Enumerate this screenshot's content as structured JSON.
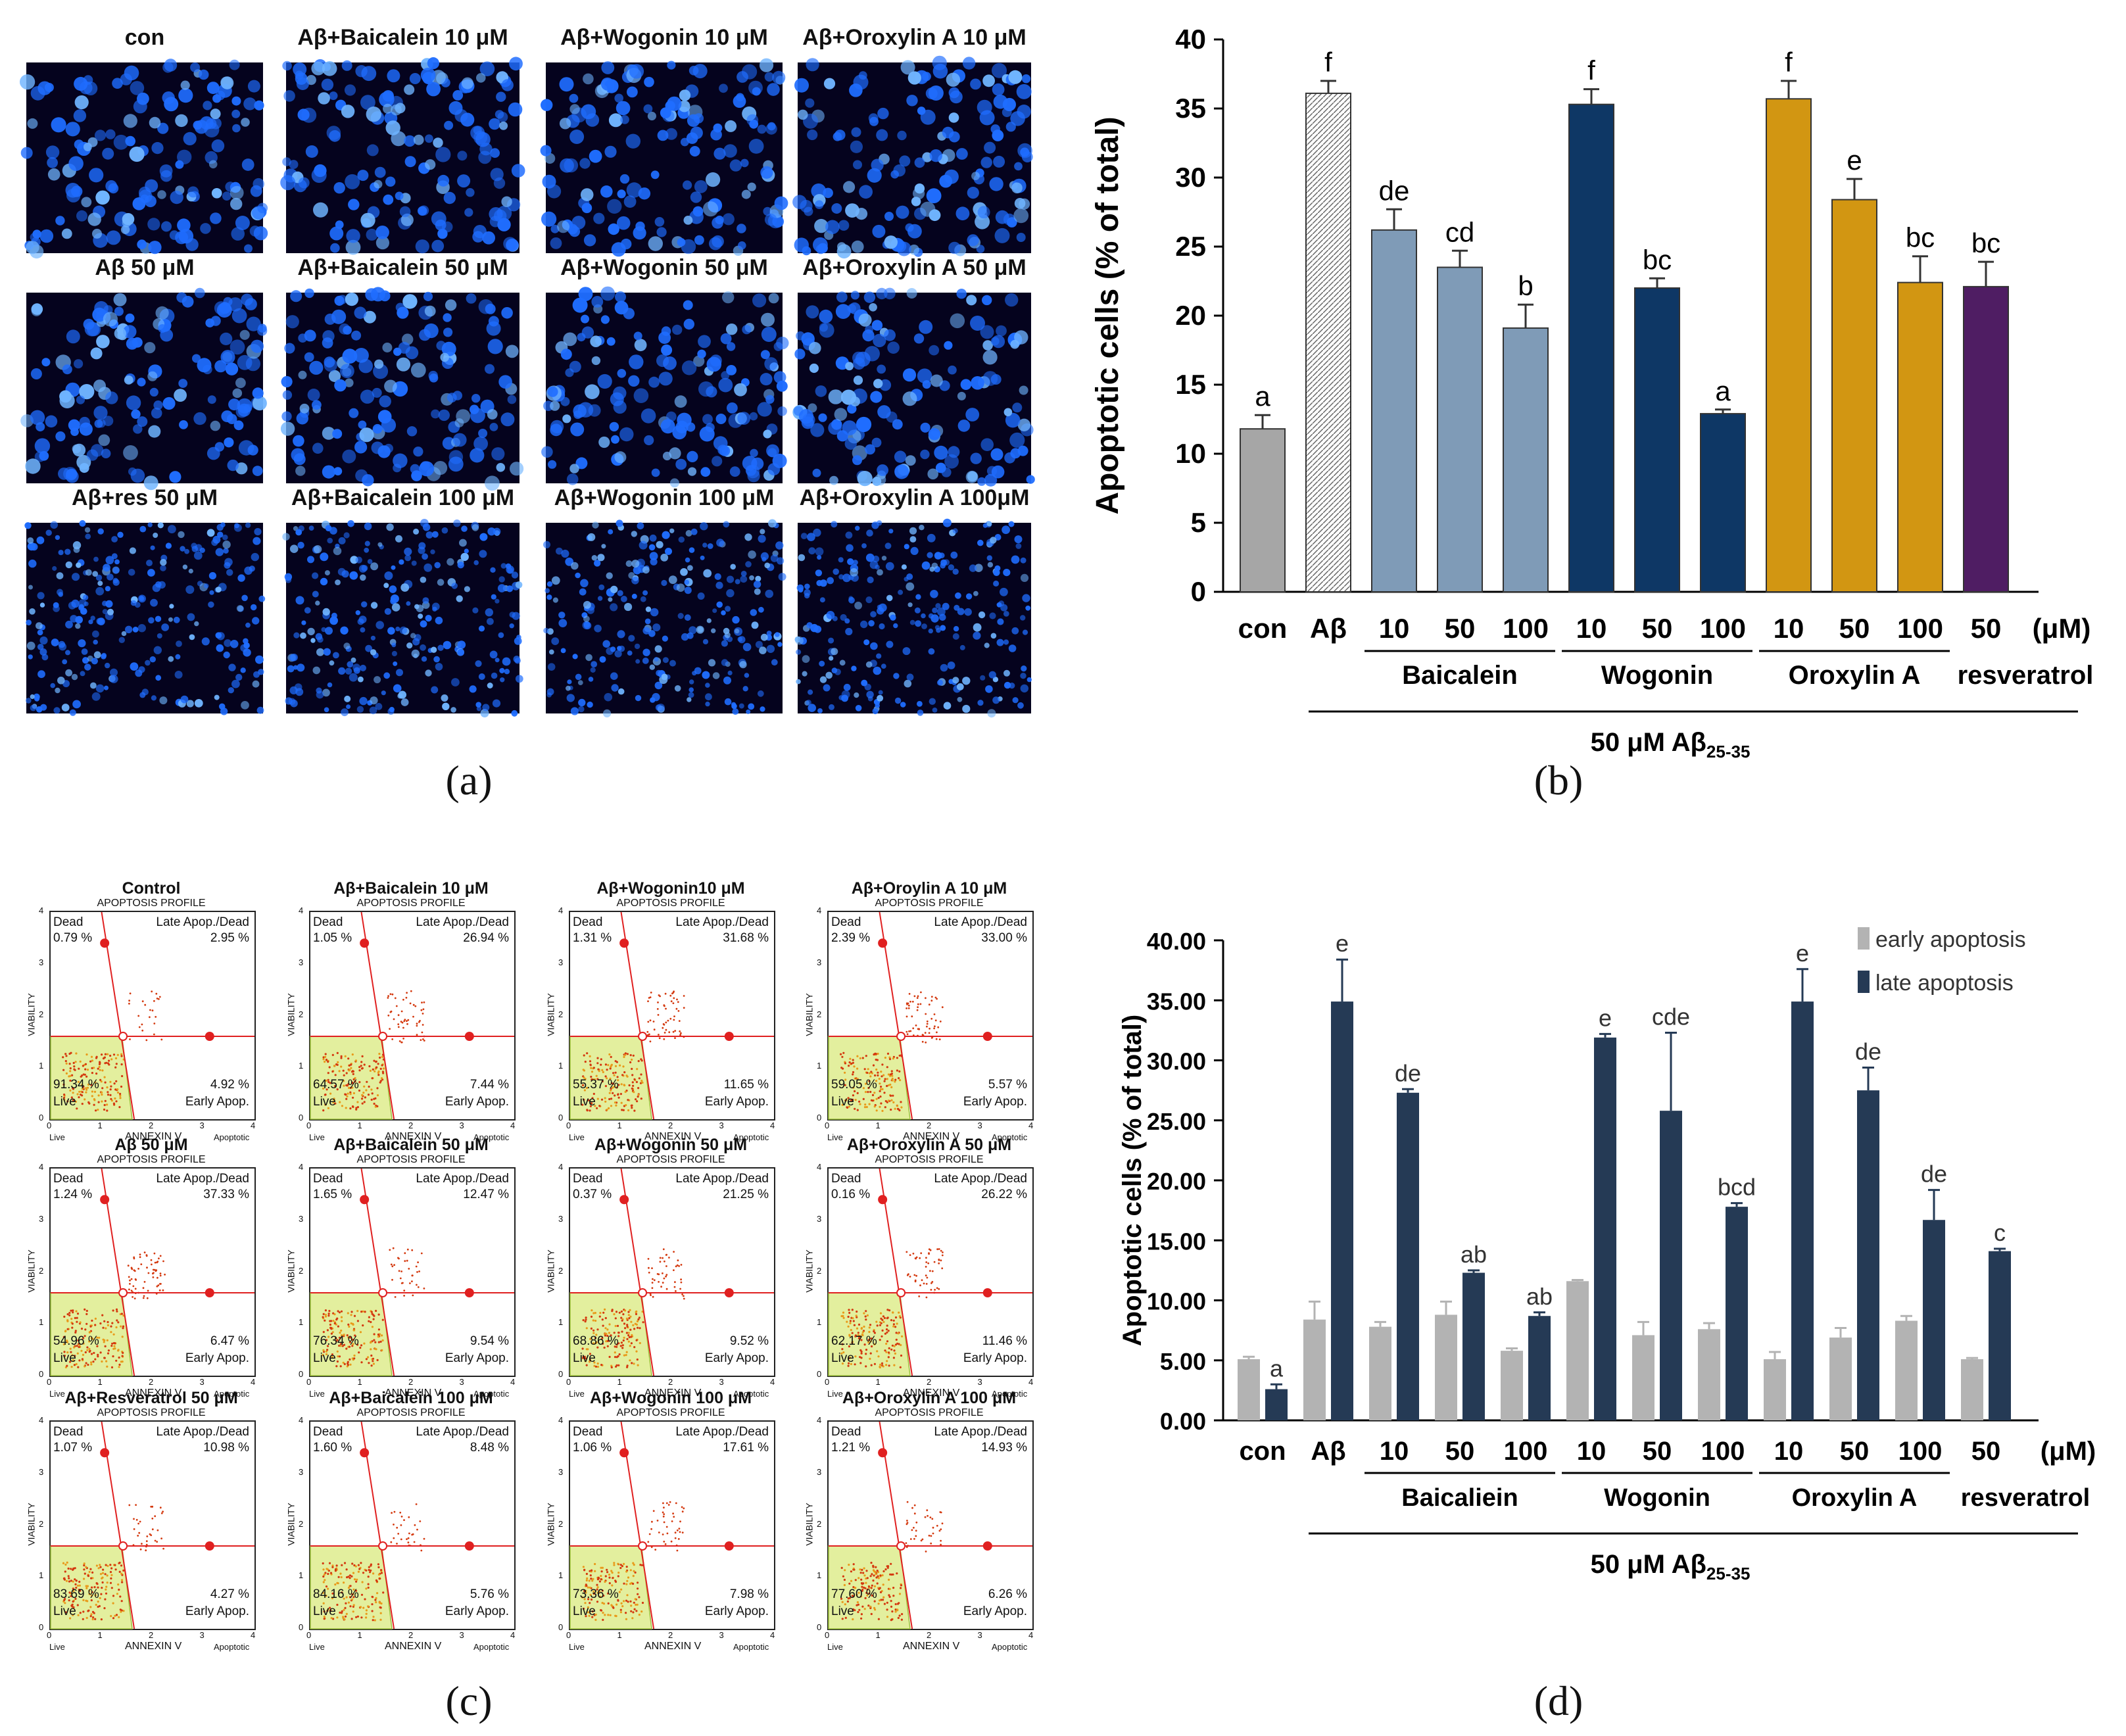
{
  "panel_labels": {
    "a": "(a)",
    "b": "(b)",
    "c": "(c)",
    "d": "(d)"
  },
  "panel_a": {
    "titles": [
      "con",
      "Aβ+Baicalein 10 μM",
      "Aβ+Wogonin 10 μM",
      "Aβ+Oroxylin A 10 μM",
      "Aβ 50 μM",
      "Aβ+Baicalein 50 μM",
      "Aβ+Wogonin 50 μM",
      "Aβ+Oroxylin A 50 μM",
      "Aβ+res 50 μM",
      "Aβ+Baicalein 100 μM",
      "Aβ+Wogonin 100 μM",
      "Aβ+Oroxylin A 100μM"
    ],
    "colors": {
      "background": "#05031e",
      "nuclei": "#1f6dff",
      "bright": "#6fb4ff"
    }
  },
  "chart_data": [
    {
      "id": "b",
      "type": "bar",
      "ylabel": "Apoptotic cells (% of  total)",
      "ylim": [
        0,
        40
      ],
      "yticks": [
        "0",
        "5",
        "10",
        "15",
        "20",
        "25",
        "30",
        "35",
        "40"
      ],
      "categories": [
        "con",
        "Aβ",
        "10",
        "50",
        "100",
        "10",
        "50",
        "100",
        "10",
        "50",
        "100",
        "50"
      ],
      "unit_label": "(μM)",
      "values": [
        11.8,
        36.1,
        26.2,
        23.5,
        19.1,
        35.3,
        22.0,
        12.9,
        35.7,
        28.4,
        22.4,
        22.1
      ],
      "errors": [
        1.0,
        0.9,
        1.5,
        1.2,
        1.7,
        1.1,
        0.7,
        0.3,
        1.3,
        1.5,
        1.9,
        1.8
      ],
      "letters": [
        "a",
        "f",
        "de",
        "cd",
        "b",
        "f",
        "bc",
        "a",
        "f",
        "e",
        "bc",
        "bc"
      ],
      "colors": [
        "#a6a6a6",
        "#ffffff",
        "#7f9bb7",
        "#7f9bb7",
        "#7f9bb7",
        "#0e3765",
        "#0e3765",
        "#0e3765",
        "#d29612",
        "#d29612",
        "#d29612",
        "#4f1d63"
      ],
      "groups": [
        {
          "label": "Baicalein",
          "from": 2,
          "to": 4
        },
        {
          "label": "Wogonin",
          "from": 5,
          "to": 7
        },
        {
          "label": "Oroxylin A",
          "from": 8,
          "to": 10
        },
        {
          "label": "resveratrol",
          "from": 11,
          "to": 11
        }
      ],
      "treatment_prefix": "50 μM Aβ",
      "treatment_subscript": "25-35"
    },
    {
      "id": "d",
      "type": "bar",
      "ylabel": "Apoptotic cells (% of  total)",
      "ylim": [
        0,
        40
      ],
      "yticks": [
        "0.00",
        "5.00",
        "10.00",
        "15.00",
        "20.00",
        "25.00",
        "30.00",
        "35.00",
        "40.00"
      ],
      "categories": [
        "con",
        "Aβ",
        "10",
        "50",
        "100",
        "10",
        "50",
        "100",
        "10",
        "50",
        "100",
        "50"
      ],
      "unit_label": "(μM)",
      "series": [
        {
          "name": "early apoptosis",
          "color": "#b3b3b3",
          "values": [
            5.1,
            8.4,
            7.8,
            8.8,
            5.8,
            11.6,
            7.1,
            7.6,
            5.1,
            6.9,
            8.3,
            5.1
          ],
          "errors": [
            0.2,
            1.5,
            0.4,
            1.1,
            0.2,
            0.1,
            1.1,
            0.5,
            0.6,
            0.8,
            0.4,
            0.1
          ]
        },
        {
          "name": "late apoptosis",
          "color": "#253a55",
          "values": [
            2.6,
            34.9,
            27.3,
            12.3,
            8.7,
            31.9,
            25.8,
            17.8,
            34.9,
            27.5,
            16.7,
            14.1
          ],
          "errors": [
            0.4,
            3.5,
            0.3,
            0.2,
            0.3,
            0.3,
            6.5,
            0.3,
            2.7,
            1.9,
            2.5,
            0.2
          ]
        }
      ],
      "letters": [
        "a",
        "e",
        "de",
        "ab",
        "ab",
        "e",
        "cde",
        "bcd",
        "e",
        "de",
        "de",
        "c"
      ],
      "groups": [
        {
          "label": "Baicaliein",
          "from": 2,
          "to": 4
        },
        {
          "label": "Wogonin",
          "from": 5,
          "to": 7
        },
        {
          "label": "Oroxylin A",
          "from": 8,
          "to": 10
        },
        {
          "label": "resveratrol",
          "from": 11,
          "to": 11
        }
      ],
      "treatment_prefix": "50 μM Aβ",
      "treatment_subscript": "25-35"
    }
  ],
  "panel_c": {
    "profile_label": "APOPTOSIS PROFILE",
    "y_axis_label": "VIABILITY",
    "x_axis_label": "ANNEXIN V",
    "x_left_label": "Live",
    "x_right_label": "Apoptotic",
    "q_dead": "Dead",
    "q_late": "Late Apop./Dead",
    "q_live": "Live",
    "q_early": "Early Apop.",
    "ticks": [
      "0",
      "1",
      "2",
      "3",
      "4"
    ],
    "plots": [
      {
        "title": "Control",
        "dead": "0.79 %",
        "late": "2.95 %",
        "live": "91.34 %",
        "early": "4.92 %"
      },
      {
        "title": "Aβ+Baicalein 10 μM",
        "dead": "1.05 %",
        "late": "26.94 %",
        "live": "64.57 %",
        "early": "7.44 %"
      },
      {
        "title": "Aβ+Wogonin10 μM",
        "dead": "1.31 %",
        "late": "31.68 %",
        "live": "55.37 %",
        "early": "11.65 %"
      },
      {
        "title": "Aβ+Oroylin A 10 μM",
        "dead": "2.39 %",
        "late": "33.00 %",
        "live": "59.05 %",
        "early": "5.57 %"
      },
      {
        "title": "Aβ 50 μM",
        "dead": "1.24 %",
        "late": "37.33 %",
        "live": "54.96 %",
        "early": "6.47 %"
      },
      {
        "title": "Aβ+Baicalein 50 μM",
        "dead": "1.65 %",
        "late": "12.47 %",
        "live": "76.34 %",
        "early": "9.54 %"
      },
      {
        "title": "Aβ+Wogonin 50 μM",
        "dead": "0.37 %",
        "late": "21.25 %",
        "live": "68.86 %",
        "early": "9.52 %"
      },
      {
        "title": "Aβ+Oroxylin A 50 μM",
        "dead": "0.16 %",
        "late": "26.22 %",
        "live": "62.17 %",
        "early": "11.46 %"
      },
      {
        "title": "Aβ+Resveratrol 50 μM",
        "dead": "1.07 %",
        "late": "10.98 %",
        "live": "83.69 %",
        "early": "4.27 %"
      },
      {
        "title": "Aβ+Baicalein 100 μM",
        "dead": "1.60 %",
        "late": "8.48 %",
        "live": "84.16 %",
        "early": "5.76 %"
      },
      {
        "title": "Aβ+Wogonin 100 μM",
        "dead": "1.06 %",
        "late": "17.61 %",
        "live": "73.36 %",
        "early": "7.98 %"
      },
      {
        "title": "Aβ+Oroxylin A 100 μM",
        "dead": "1.21 %",
        "late": "14.93 %",
        "live": "77.60 %",
        "early": "6.26 %"
      }
    ]
  }
}
